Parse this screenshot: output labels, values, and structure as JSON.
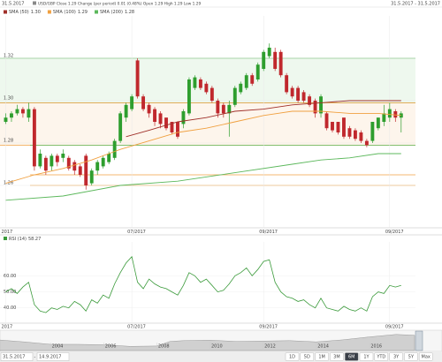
{
  "header": {
    "date": "31.5.2017",
    "quote": "USD/GBP Close 1.29 Change (per period) 0.01 (0.48%) Open 1.29 High 1.29 Low 1.29",
    "range": "31.5.2017 - 31.5.2017"
  },
  "chart_data": [
    {
      "type": "candlestick",
      "up_color": "#2e9e2e",
      "down_color": "#c0282d",
      "xlim": [
        -1,
        71.5
      ],
      "xticks": [
        {
          "value": 0,
          "label": "2017"
        },
        {
          "value": 22,
          "label": "07/2017"
        },
        {
          "value": 45,
          "label": "09/2017"
        },
        {
          "value": 67,
          "label": "09/2017"
        }
      ],
      "ylim": [
        1.24,
        1.345
      ],
      "yticks": [
        1.32,
        {
          "value": 1.3,
          "label": "1.30"
        },
        1.28,
        1.26
      ],
      "open": [
        1.29,
        1.292,
        1.294,
        1.296,
        1.292,
        1.296,
        1.269,
        1.273,
        1.269,
        1.274,
        1.273,
        1.273,
        1.271,
        1.269,
        1.274,
        1.261,
        1.267,
        1.269,
        1.271,
        1.273,
        1.281,
        1.292,
        1.296,
        1.319,
        1.302,
        1.298,
        1.296,
        1.294,
        1.292,
        1.29,
        1.29,
        1.289,
        1.294,
        1.306,
        1.31,
        1.308,
        1.306,
        1.3,
        1.298,
        1.294,
        1.298,
        1.304,
        1.306,
        1.312,
        1.31,
        1.315,
        1.321,
        1.323,
        1.323,
        1.312,
        1.306,
        1.306,
        1.304,
        1.302,
        1.3,
        1.294,
        1.294,
        1.29,
        1.29,
        1.292,
        1.287,
        1.286,
        1.285,
        1.281,
        1.281,
        1.287,
        1.29,
        1.292,
        1.295,
        1.292
      ],
      "high": [
        1.294,
        1.295,
        1.298,
        1.297,
        1.299,
        1.297,
        1.277,
        1.274,
        1.275,
        1.275,
        1.277,
        1.274,
        1.272,
        1.27,
        1.275,
        1.268,
        1.272,
        1.274,
        1.276,
        1.282,
        1.295,
        1.299,
        1.303,
        1.32,
        1.303,
        1.299,
        1.297,
        1.295,
        1.292,
        1.29,
        1.29,
        1.296,
        1.311,
        1.312,
        1.311,
        1.309,
        1.307,
        1.301,
        1.299,
        1.3,
        1.307,
        1.309,
        1.313,
        1.313,
        1.318,
        1.324,
        1.327,
        1.325,
        1.324,
        1.313,
        1.307,
        1.307,
        1.305,
        1.303,
        1.301,
        1.303,
        1.295,
        1.29,
        1.29,
        1.292,
        1.288,
        1.287,
        1.286,
        1.282,
        1.29,
        1.292,
        1.298,
        1.299,
        1.296,
        1.295
      ],
      "low": [
        1.289,
        1.29,
        1.293,
        1.292,
        1.29,
        1.267,
        1.268,
        1.265,
        1.267,
        1.269,
        1.271,
        1.267,
        1.265,
        1.264,
        1.258,
        1.26,
        1.265,
        1.268,
        1.27,
        1.272,
        1.28,
        1.29,
        1.295,
        1.301,
        1.295,
        1.292,
        1.288,
        1.287,
        1.286,
        1.284,
        1.282,
        1.287,
        1.293,
        1.305,
        1.305,
        1.303,
        1.299,
        1.292,
        1.292,
        1.283,
        1.297,
        1.303,
        1.305,
        1.307,
        1.309,
        1.314,
        1.32,
        1.314,
        1.311,
        1.303,
        1.301,
        1.299,
        1.299,
        1.297,
        1.292,
        1.292,
        1.286,
        1.285,
        1.284,
        1.282,
        1.282,
        1.281,
        1.28,
        1.278,
        1.28,
        1.286,
        1.288,
        1.29,
        1.29,
        1.285
      ],
      "close": [
        1.292,
        1.294,
        1.296,
        1.294,
        1.296,
        1.269,
        1.275,
        1.267,
        1.274,
        1.271,
        1.275,
        1.268,
        1.267,
        1.265,
        1.26,
        1.267,
        1.271,
        1.273,
        1.275,
        1.281,
        1.294,
        1.298,
        1.302,
        1.302,
        1.296,
        1.294,
        1.29,
        1.289,
        1.287,
        1.285,
        1.283,
        1.295,
        1.31,
        1.311,
        1.306,
        1.304,
        1.3,
        1.294,
        1.294,
        1.298,
        1.306,
        1.308,
        1.312,
        1.308,
        1.317,
        1.323,
        1.325,
        1.315,
        1.312,
        1.304,
        1.302,
        1.3,
        1.3,
        1.298,
        1.294,
        1.302,
        1.287,
        1.286,
        1.285,
        1.283,
        1.283,
        1.282,
        1.281,
        1.279,
        1.29,
        1.292,
        1.294,
        1.296,
        1.292,
        1.294
      ],
      "series": [
        {
          "name": "SMA (50)",
          "legend_value": "1.30",
          "color": "#a0302a",
          "x": [
            21,
            25,
            30,
            35,
            40,
            45,
            50,
            55,
            60,
            65,
            69
          ],
          "values": [
            1.283,
            1.286,
            1.29,
            1.292,
            1.295,
            1.296,
            1.298,
            1.299,
            1.3,
            1.3,
            1.3
          ]
        },
        {
          "name": "SMA (100)",
          "legend_value": "1.29",
          "color": "#f0a040",
          "x": [
            0,
            5,
            10,
            15,
            20,
            25,
            30,
            35,
            40,
            45,
            50,
            55,
            60,
            65,
            69
          ],
          "values": [
            1.261,
            1.265,
            1.268,
            1.272,
            1.277,
            1.281,
            1.285,
            1.287,
            1.29,
            1.293,
            1.295,
            1.295,
            1.294,
            1.294,
            1.293
          ]
        },
        {
          "name": "SMA (200)",
          "legend_value": "1.28",
          "color": "#5cb85c",
          "x": [
            0,
            10,
            20,
            30,
            40,
            50,
            55,
            60,
            65,
            69
          ],
          "values": [
            1.253,
            1.255,
            1.26,
            1.262,
            1.266,
            1.27,
            1.272,
            1.273,
            1.275,
            1.275
          ]
        }
      ],
      "zones": [
        {
          "from": 1.32,
          "to": 1.299,
          "color": "#5cb85c"
        },
        {
          "from": 1.299,
          "to": 1.279,
          "color": "#f0a040"
        }
      ],
      "levels": [
        {
          "value": 1.279,
          "color": "#5cb85c"
        },
        {
          "value": 1.265,
          "color": "#f0a040"
        },
        {
          "value": 1.26,
          "color": "#f0a040"
        }
      ]
    },
    {
      "type": "line",
      "title": "RSI (14)",
      "title_value": "58.27",
      "color": "#3a9a3a",
      "xlim": [
        -1,
        71.5
      ],
      "xticks": [
        {
          "value": 0,
          "label": "2017"
        },
        {
          "value": 22,
          "label": "07/2017"
        },
        {
          "value": 45,
          "label": "09/2017"
        },
        {
          "value": 67,
          "label": "09/2017"
        }
      ],
      "ylim": [
        31,
        79
      ],
      "yticks": [
        {
          "value": 60,
          "label": "60.00"
        },
        {
          "value": 50,
          "label": "50.00"
        },
        {
          "value": 40,
          "label": "40.00"
        }
      ],
      "values": [
        50,
        52,
        49,
        53,
        56,
        42,
        38,
        37,
        40,
        39,
        41,
        40,
        44,
        42,
        38,
        45,
        43,
        48,
        46,
        55,
        62,
        68,
        72,
        56,
        52,
        58,
        55,
        53,
        52,
        50,
        48,
        54,
        62,
        60,
        56,
        58,
        54,
        50,
        51,
        55,
        60,
        62,
        65,
        60,
        64,
        69,
        70,
        56,
        50,
        47,
        46,
        44,
        45,
        42,
        40,
        46,
        40,
        39,
        38,
        41,
        39,
        38,
        40,
        38,
        47,
        50,
        49,
        54,
        53,
        54
      ]
    },
    {
      "type": "area",
      "color": "#b8b8b8",
      "xlim": [
        2002.1,
        2018.4
      ],
      "ylim": [
        0.4,
        0.85
      ],
      "xticks": [
        2004,
        2006,
        2008,
        2010,
        2012,
        2014,
        2016
      ],
      "x": [
        2002,
        2003,
        2004,
        2005,
        2006,
        2007,
        2008,
        2008.5,
        2009,
        2010,
        2011,
        2012,
        2013,
        2014,
        2015,
        2016,
        2016.5,
        2017,
        2017.7
      ],
      "values": [
        0.66,
        0.61,
        0.55,
        0.55,
        0.54,
        0.5,
        0.51,
        0.62,
        0.64,
        0.65,
        0.62,
        0.63,
        0.64,
        0.61,
        0.66,
        0.73,
        0.76,
        0.79,
        0.77
      ]
    }
  ],
  "footer": {
    "from": "31.5.2017",
    "separator": "-",
    "to": "14.9.2017",
    "buttons": [
      "1D",
      "5D",
      "1M",
      "3M",
      "6M",
      "1Y",
      "YTD",
      "3Y",
      "5Y",
      "Max"
    ],
    "selected": 4
  }
}
